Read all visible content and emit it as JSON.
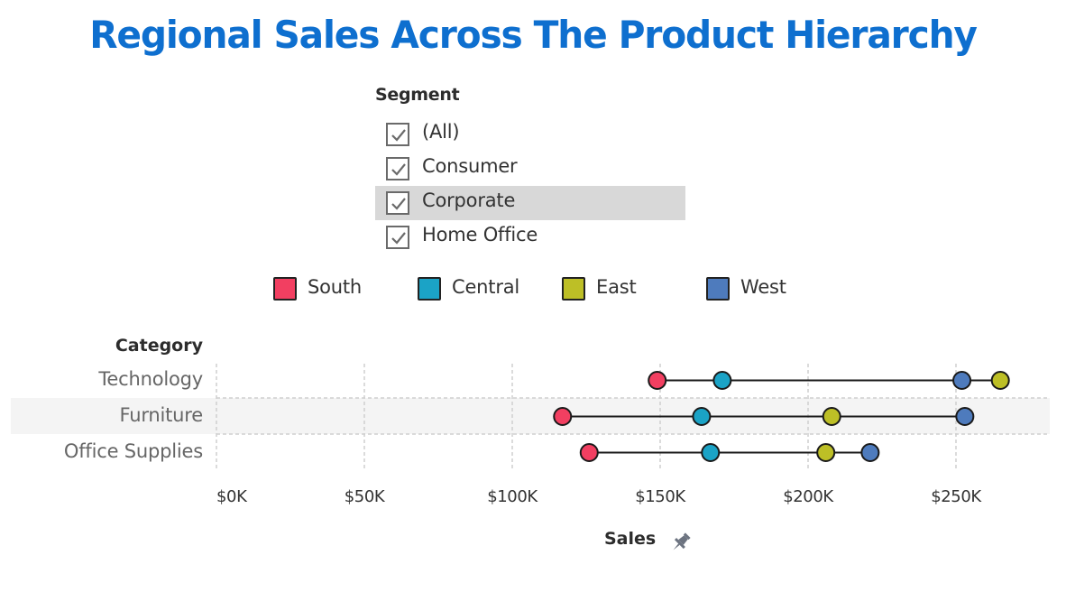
{
  "title": "Regional Sales Across The Product Hierarchy",
  "segment_filter": {
    "title": "Segment",
    "items": [
      {
        "label": "(All)",
        "checked": true
      },
      {
        "label": "Consumer",
        "checked": true
      },
      {
        "label": "Corporate",
        "checked": true,
        "highlighted": true
      },
      {
        "label": "Home Office",
        "checked": true
      }
    ]
  },
  "colors": {
    "South": "#f23f61",
    "Central": "#1ba3c6",
    "East": "#bdbf26",
    "West": "#4e7bbd",
    "title": "#0e6fcf"
  },
  "chart_data": {
    "type": "scatter",
    "subtype": "dumbbell",
    "title": "Regional Sales Across The Product Hierarchy",
    "ylabel": "Category",
    "xlabel": "Sales",
    "xlim": [
      0,
      285
    ],
    "x_unit": "$K",
    "grid": true,
    "legend": "top",
    "legend_entries": [
      "South",
      "Central",
      "East",
      "West"
    ],
    "x_ticks": [
      0,
      50,
      100,
      150,
      200,
      250
    ],
    "x_tick_labels": [
      "$0K",
      "$50K",
      "$100K",
      "$150K",
      "$200K",
      "$250K"
    ],
    "categories": [
      "Technology",
      "Furniture",
      "Office Supplies"
    ],
    "series": [
      {
        "name": "South",
        "values": [
          149,
          117,
          126
        ]
      },
      {
        "name": "Central",
        "values": [
          171,
          164,
          167
        ]
      },
      {
        "name": "East",
        "values": [
          265,
          208,
          206
        ]
      },
      {
        "name": "West",
        "values": [
          252,
          253,
          221
        ]
      }
    ]
  }
}
